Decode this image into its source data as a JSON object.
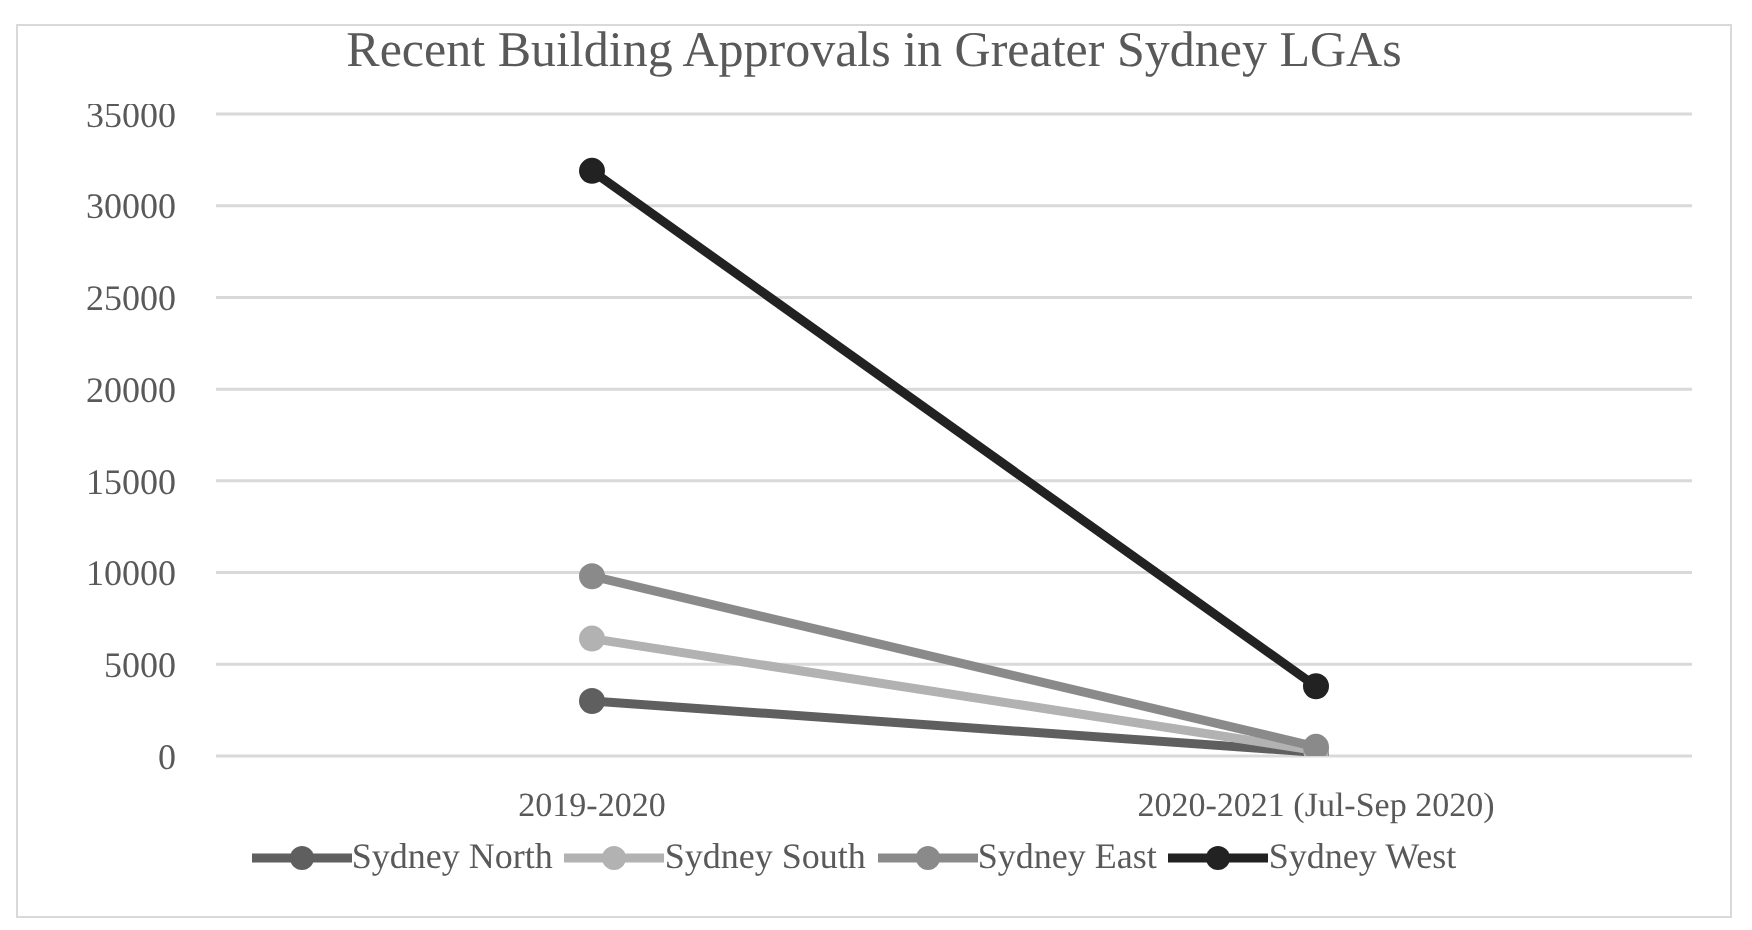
{
  "chart_data": {
    "type": "line",
    "title": "Recent Building Approvals in Greater Sydney LGAs",
    "categories": [
      "2019-2020",
      "2020-2021 (Jul-Sep 2020)"
    ],
    "series": [
      {
        "name": "Sydney North",
        "color": "#5f5f5f",
        "values": [
          3000,
          200
        ]
      },
      {
        "name": "Sydney South",
        "color": "#b2b2b2",
        "values": [
          6400,
          300
        ]
      },
      {
        "name": "Sydney East",
        "color": "#8a8a8a",
        "values": [
          9800,
          500
        ]
      },
      {
        "name": "Sydney West",
        "color": "#222222",
        "values": [
          31900,
          3800
        ]
      }
    ],
    "ylim": [
      0,
      35000
    ],
    "yticks": [
      0,
      5000,
      10000,
      15000,
      20000,
      25000,
      30000,
      35000
    ],
    "grid": "y",
    "legend": "bottom",
    "marker": "circle",
    "line_style": "solid"
  }
}
